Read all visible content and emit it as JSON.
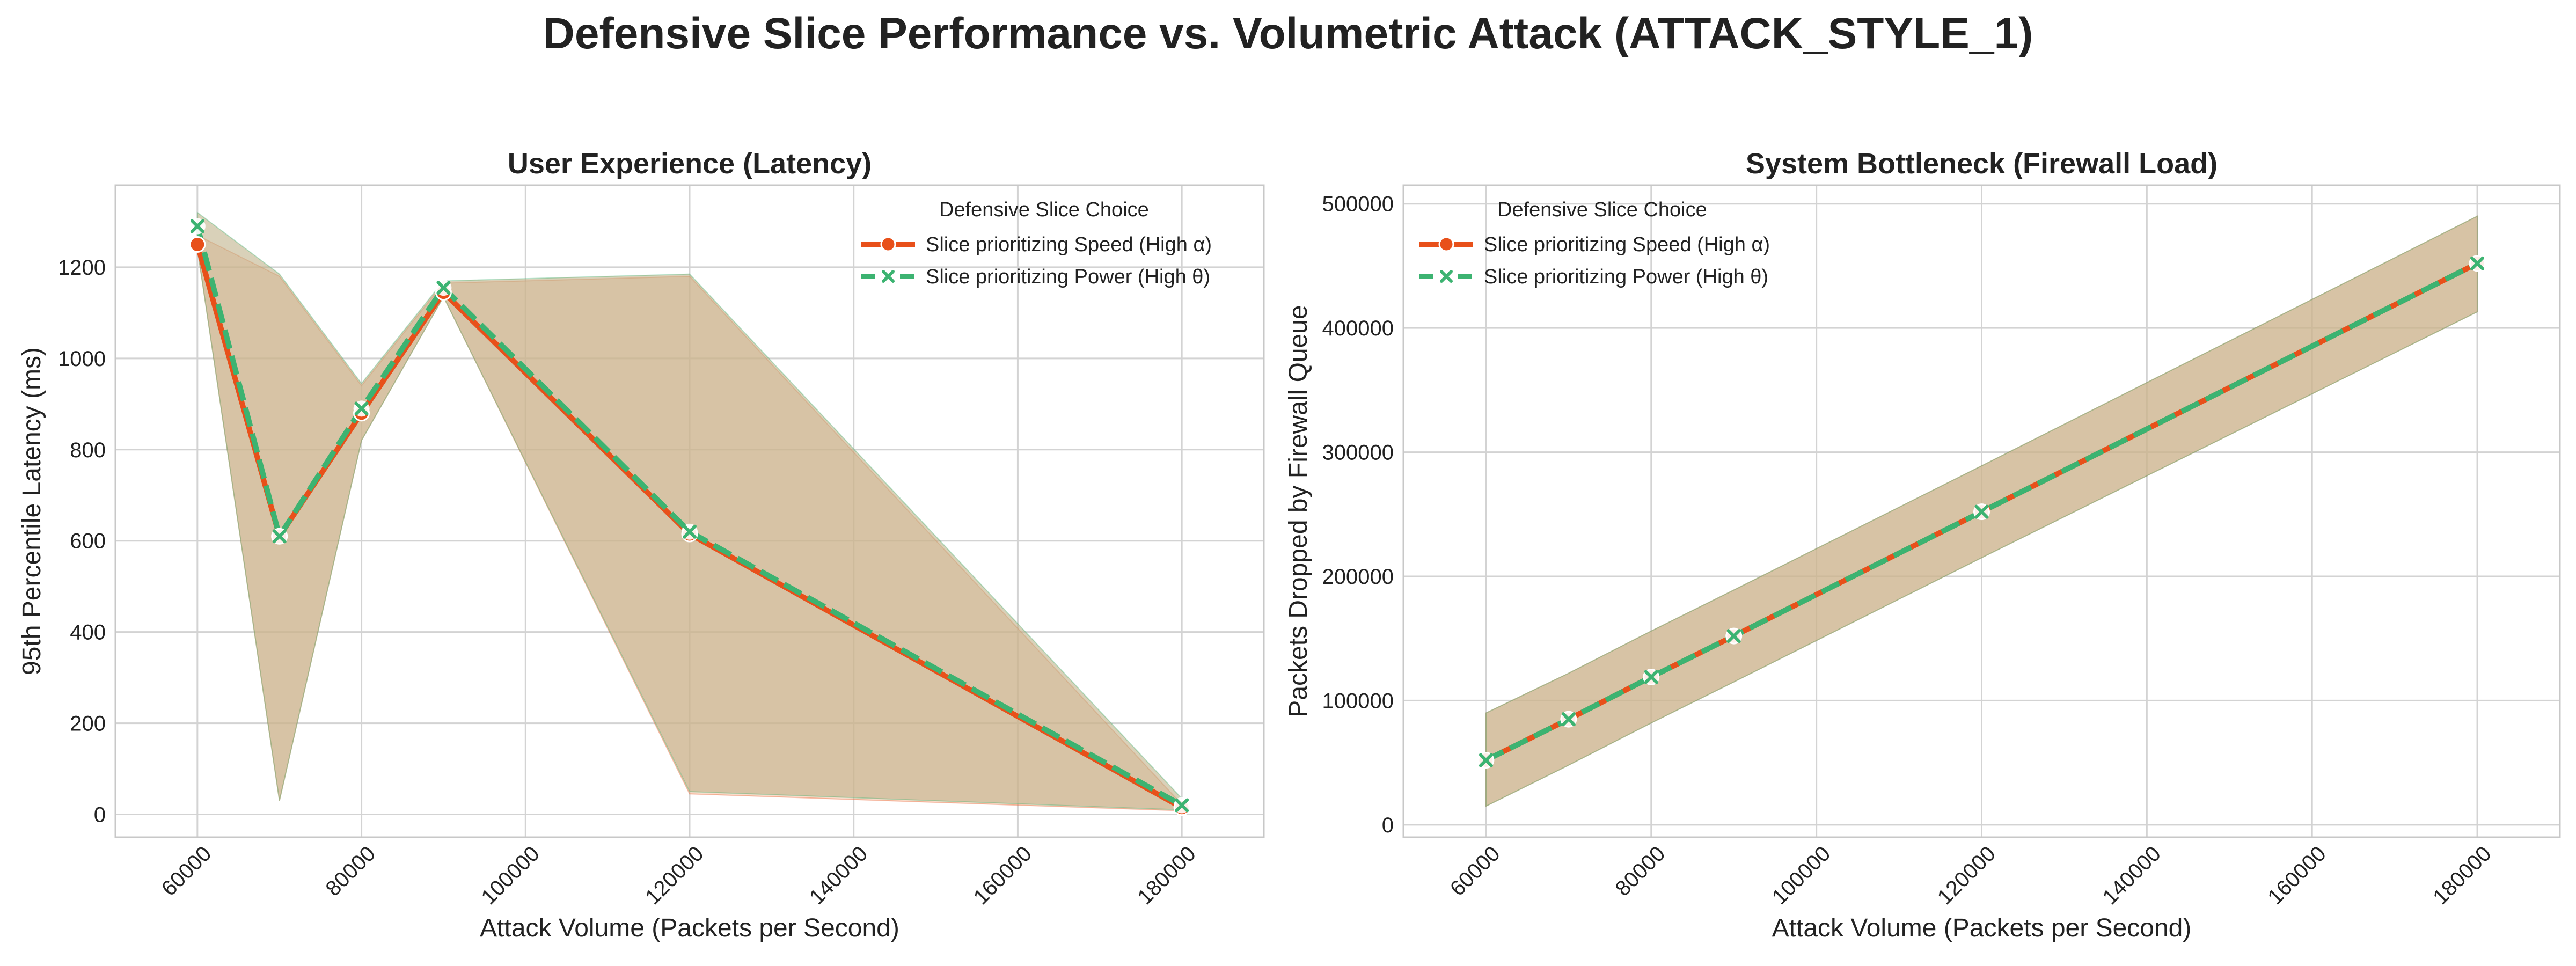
{
  "figure": {
    "title": "Defensive Slice Performance vs. Volumetric Attack (ATTACK_STYLE_1)"
  },
  "colors": {
    "speed": "#e8501a",
    "power": "#3cb371",
    "band": "#bfb38a",
    "grid": "#d3d3d3",
    "axis": "#c8c8c8",
    "text": "#222222"
  },
  "chart_data": [
    {
      "type": "line",
      "title": "User Experience (Latency)",
      "xlabel": "Attack Volume (Packets per Second)",
      "ylabel": "95th Percentile Latency (ms)",
      "xlim": [
        50000,
        190000
      ],
      "ylim": [
        -50,
        1380
      ],
      "xticks": [
        60000,
        80000,
        100000,
        120000,
        140000,
        160000,
        180000
      ],
      "yticks": [
        0,
        200,
        400,
        600,
        800,
        1000,
        1200
      ],
      "grid": true,
      "legend": {
        "title": "Defensive Slice Choice",
        "placement": "upper-right",
        "entries": [
          "Slice prioritizing Speed (High α)",
          "Slice prioritizing Power (High θ)"
        ]
      },
      "x": [
        60000,
        70000,
        80000,
        90000,
        120000,
        180000
      ],
      "series": [
        {
          "name": "Slice prioritizing Speed (High α)",
          "marker": "circle",
          "dash": "solid",
          "values": [
            1250,
            610,
            880,
            1145,
            615,
            15
          ],
          "ci_lower": [
            1240,
            30,
            820,
            1135,
            45,
            8
          ],
          "ci_upper": [
            1270,
            1180,
            940,
            1165,
            1180,
            22
          ]
        },
        {
          "name": "Slice prioritizing Power (High θ)",
          "marker": "x",
          "dash": "dashed",
          "values": [
            1290,
            610,
            890,
            1155,
            620,
            20
          ],
          "ci_lower": [
            1240,
            30,
            820,
            1135,
            50,
            10
          ],
          "ci_upper": [
            1320,
            1185,
            945,
            1170,
            1185,
            35
          ]
        }
      ]
    },
    {
      "type": "line",
      "title": "System Bottleneck (Firewall Load)",
      "xlabel": "Attack Volume (Packets per Second)",
      "ylabel": "Packets Dropped by Firewall Queue",
      "xlim": [
        50000,
        190000
      ],
      "ylim": [
        -10000,
        515000
      ],
      "xticks": [
        60000,
        80000,
        100000,
        120000,
        140000,
        160000,
        180000
      ],
      "yticks": [
        0,
        100000,
        200000,
        300000,
        400000,
        500000
      ],
      "grid": true,
      "legend": {
        "title": "Defensive Slice Choice",
        "placement": "upper-left",
        "entries": [
          "Slice prioritizing Speed (High α)",
          "Slice prioritizing Power (High θ)"
        ]
      },
      "x": [
        60000,
        70000,
        80000,
        90000,
        120000,
        180000
      ],
      "series": [
        {
          "name": "Slice prioritizing Speed (High α)",
          "marker": "circle",
          "dash": "solid",
          "values": [
            52000,
            85000,
            119000,
            152000,
            252000,
            452000
          ],
          "ci_lower": [
            15000,
            48000,
            82000,
            115000,
            215000,
            413000
          ],
          "ci_upper": [
            90000,
            122000,
            156000,
            189000,
            289000,
            490000
          ]
        },
        {
          "name": "Slice prioritizing Power (High θ)",
          "marker": "x",
          "dash": "dashed",
          "values": [
            52000,
            85000,
            119000,
            152000,
            252000,
            452000
          ],
          "ci_lower": [
            15000,
            48000,
            82000,
            115000,
            215000,
            413000
          ],
          "ci_upper": [
            90000,
            122000,
            156000,
            189000,
            289000,
            490000
          ]
        }
      ]
    }
  ]
}
